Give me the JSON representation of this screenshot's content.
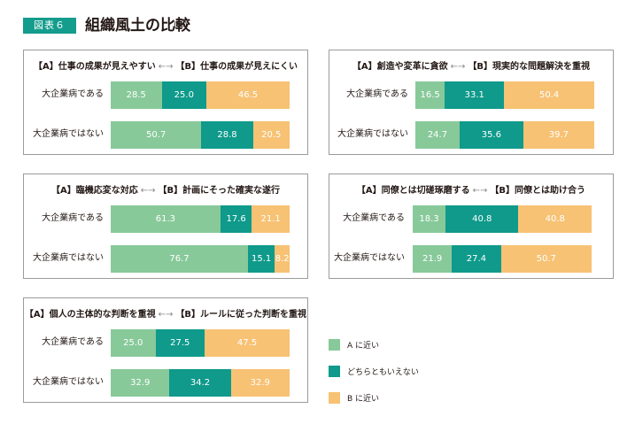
{
  "figure": {
    "badge": "図表６",
    "title": "組織風土の比較",
    "unit": "(%)"
  },
  "legend": [
    {
      "label": "A に近い",
      "color": "#88c99a"
    },
    {
      "label": "どちらともいえない",
      "color": "#0f9a8b"
    },
    {
      "label": "B に近い",
      "color": "#f7c274"
    }
  ],
  "chart_data": [
    {
      "type": "bar",
      "stacked": true,
      "title_a": "【A】仕事の成果が見えやすい",
      "title_b": "【B】仕事の成果が見えにくい",
      "arrow": "←→",
      "categories": [
        "大企業病である",
        "大企業病ではない"
      ],
      "series": [
        {
          "name": "A に近い",
          "values": [
            28.5,
            50.7
          ]
        },
        {
          "name": "どちらともいえない",
          "values": [
            25.0,
            28.8
          ]
        },
        {
          "name": "B に近い",
          "values": [
            46.5,
            20.5
          ]
        }
      ]
    },
    {
      "type": "bar",
      "stacked": true,
      "title_a": "【A】創造や変革に貪欲",
      "title_b": "【B】現実的な問題解決を重視",
      "arrow": "←→",
      "categories": [
        "大企業病である",
        "大企業病ではない"
      ],
      "series": [
        {
          "name": "A に近い",
          "values": [
            16.5,
            24.7
          ]
        },
        {
          "name": "どちらともいえない",
          "values": [
            33.1,
            35.6
          ]
        },
        {
          "name": "B に近い",
          "values": [
            50.4,
            39.7
          ]
        }
      ]
    },
    {
      "type": "bar",
      "stacked": true,
      "title_a": "【A】臨機応変な対応",
      "title_b": "【B】計画にそった確実な遂行",
      "arrow": "←→",
      "categories": [
        "大企業病である",
        "大企業病ではない"
      ],
      "series": [
        {
          "name": "A に近い",
          "values": [
            61.3,
            76.7
          ]
        },
        {
          "name": "どちらともいえない",
          "values": [
            17.6,
            15.1
          ]
        },
        {
          "name": "B に近い",
          "values": [
            21.1,
            8.2
          ]
        }
      ]
    },
    {
      "type": "bar",
      "stacked": true,
      "title_a": "【A】同僚とは切磋琢磨する",
      "title_b": "【B】同僚とは助け合う",
      "arrow": "←→",
      "categories": [
        "大企業病である",
        "大企業病ではない"
      ],
      "series": [
        {
          "name": "A に近い",
          "values": [
            18.3,
            21.9
          ]
        },
        {
          "name": "どちらともいえない",
          "values": [
            40.8,
            27.4
          ]
        },
        {
          "name": "B に近い",
          "values": [
            40.8,
            50.7
          ]
        }
      ]
    },
    {
      "type": "bar",
      "stacked": true,
      "title_a": "【A】個人の主体的な判断を重視",
      "title_b": "【B】ルールに従った判断を重視",
      "arrow": "←→",
      "categories": [
        "大企業病である",
        "大企業病ではない"
      ],
      "series": [
        {
          "name": "A に近い",
          "values": [
            25.0,
            32.9
          ]
        },
        {
          "name": "どちらともいえない",
          "values": [
            27.5,
            34.2
          ]
        },
        {
          "name": "B に近い",
          "values": [
            47.5,
            32.9
          ]
        }
      ]
    }
  ]
}
